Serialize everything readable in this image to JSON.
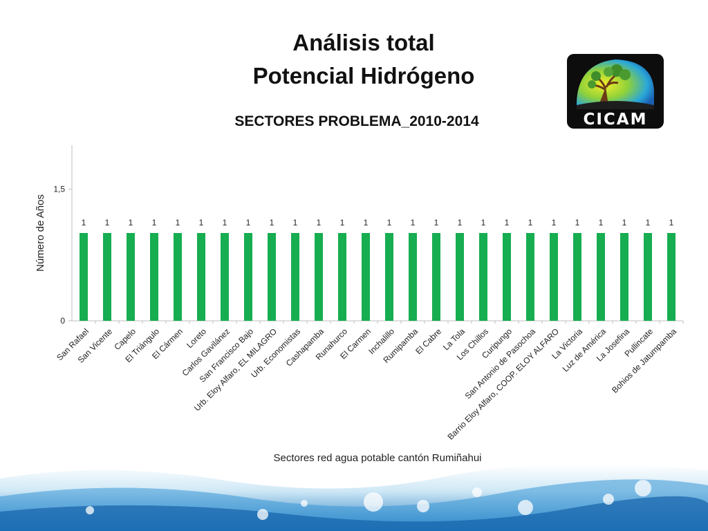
{
  "slide": {
    "title_line1": "Análisis total",
    "title_line2": "Potencial Hidrógeno"
  },
  "logo": {
    "text": "CICAM"
  },
  "colors": {
    "bar": "#17ad51",
    "axis": "#bfbfbf",
    "logo_bg": "#0d0d0d"
  },
  "chart_data": {
    "type": "bar",
    "title": "SECTORES PROBLEMA_2010-2014",
    "xlabel": "Sectores red agua potable cantón Rumiñahui",
    "ylabel": "Número de Años",
    "ylim": [
      0,
      2
    ],
    "y_ticks": [
      0,
      1.5
    ],
    "y_tick_labels": [
      "0",
      "1,5"
    ],
    "grid": false,
    "categories": [
      "San Rafael",
      "San Vicente",
      "Capelo",
      "El Triángulo",
      "El Cármen",
      "Loreto",
      "Carlos Gavilánez",
      "San Francisco Bajo",
      "Urb. Eloy Alfaro, EL MILAGRO",
      "Urb. Economistas",
      "Cashapamba",
      "Runahurco",
      "El Carmen",
      "Inchalillo",
      "Rumipamba",
      "El Cabre",
      "La Tola",
      "Los Chillos",
      "Curipungo",
      "San Antonio de Pasochoa",
      "Barrio Eloy Alfaro, COOP. ELOY ALFARO",
      "La Victoria",
      "Luz de América",
      "La Josefina",
      "Pullincate",
      "Bohios de Jatumpamba"
    ],
    "values": [
      1,
      1,
      1,
      1,
      1,
      1,
      1,
      1,
      1,
      1,
      1,
      1,
      1,
      1,
      1,
      1,
      1,
      1,
      1,
      1,
      1,
      1,
      1,
      1,
      1,
      1
    ],
    "data_labels": true
  }
}
